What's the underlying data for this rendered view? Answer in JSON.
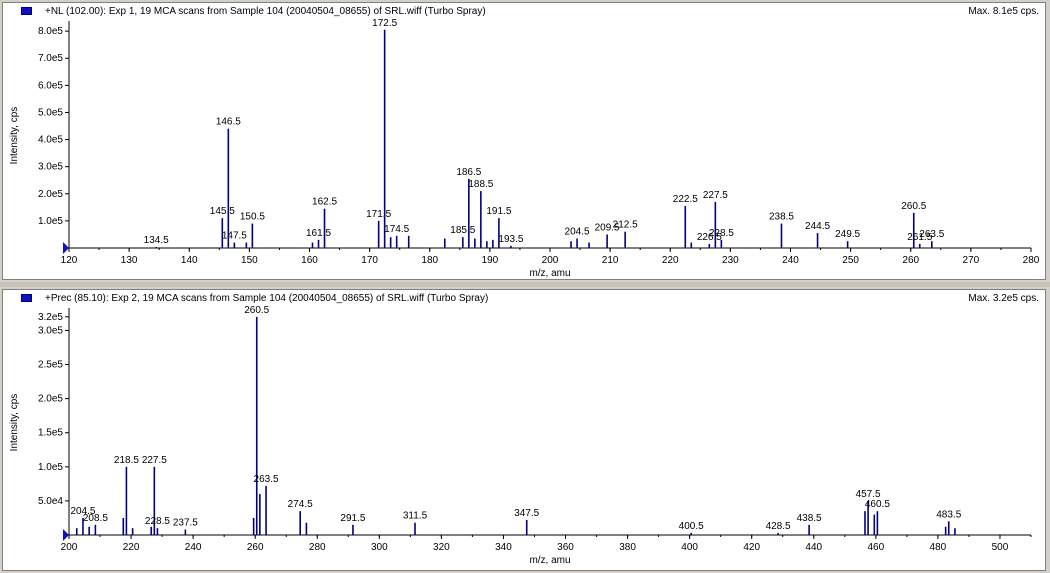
{
  "panels": [
    {
      "title": "+NL (102.00): Exp 1, 19 MCA scans from Sample 104 (20040504_08655) of SRL.wiff (Turbo Spray)",
      "max": "Max. 8.1e5 cps."
    },
    {
      "title": "+Prec (85.10): Exp 2, 19 MCA scans from Sample 104 (20040504_08655) of SRL.wiff (Turbo Spray)",
      "max": "Max. 3.2e5 cps."
    }
  ],
  "chart_data": [
    {
      "type": "bar",
      "xlabel": "m/z, amu",
      "ylabel": "Intensity, cps",
      "xlim": [
        120,
        280
      ],
      "ylim": [
        0,
        830000
      ],
      "x_ticks": [
        120,
        130,
        140,
        150,
        160,
        170,
        180,
        190,
        200,
        210,
        220,
        230,
        240,
        250,
        260,
        270,
        280
      ],
      "y_ticks": [
        100000,
        200000,
        300000,
        400000,
        500000,
        600000,
        700000,
        800000
      ],
      "y_tick_labels": [
        "1.0e5",
        "2.0e5",
        "3.0e5",
        "4.0e5",
        "5.0e5",
        "6.0e5",
        "7.0e5",
        "8.0e5"
      ],
      "color": "#000080",
      "peaks": [
        {
          "x": 134.5,
          "y": 2000,
          "label": "134.5"
        },
        {
          "x": 145.5,
          "y": 110000,
          "label": "145.5"
        },
        {
          "x": 146.5,
          "y": 440000,
          "label": "146.5"
        },
        {
          "x": 147.5,
          "y": 20000,
          "label": "147.5"
        },
        {
          "x": 149.5,
          "y": 20000
        },
        {
          "x": 150.5,
          "y": 90000,
          "label": "150.5"
        },
        {
          "x": 160.5,
          "y": 20000
        },
        {
          "x": 161.5,
          "y": 30000,
          "label": "161.5"
        },
        {
          "x": 162.5,
          "y": 145000,
          "label": "162.5"
        },
        {
          "x": 171.5,
          "y": 100000,
          "label": "171.5"
        },
        {
          "x": 172.5,
          "y": 805000,
          "label": "172.5"
        },
        {
          "x": 173.5,
          "y": 40000
        },
        {
          "x": 174.5,
          "y": 45000,
          "label": "174.5"
        },
        {
          "x": 176.5,
          "y": 45000
        },
        {
          "x": 182.5,
          "y": 35000
        },
        {
          "x": 185.5,
          "y": 40000,
          "label": "185.5"
        },
        {
          "x": 186.5,
          "y": 255000,
          "label": "186.5"
        },
        {
          "x": 187.5,
          "y": 35000
        },
        {
          "x": 188.5,
          "y": 210000,
          "label": "188.5"
        },
        {
          "x": 189.5,
          "y": 25000
        },
        {
          "x": 190.5,
          "y": 30000
        },
        {
          "x": 191.5,
          "y": 110000,
          "label": "191.5"
        },
        {
          "x": 193.5,
          "y": 8000,
          "label": "193.5"
        },
        {
          "x": 203.5,
          "y": 25000
        },
        {
          "x": 204.5,
          "y": 35000,
          "label": "204.5"
        },
        {
          "x": 206.5,
          "y": 20000
        },
        {
          "x": 209.5,
          "y": 50000,
          "label": "209.5"
        },
        {
          "x": 212.5,
          "y": 60000,
          "label": "212.5"
        },
        {
          "x": 222.5,
          "y": 155000,
          "label": "222.5"
        },
        {
          "x": 223.5,
          "y": 20000
        },
        {
          "x": 226.5,
          "y": 15000,
          "label": "226.5"
        },
        {
          "x": 227.5,
          "y": 170000,
          "label": "227.5"
        },
        {
          "x": 228.5,
          "y": 30000,
          "label": "228.5"
        },
        {
          "x": 238.5,
          "y": 90000,
          "label": "238.5"
        },
        {
          "x": 244.5,
          "y": 55000,
          "label": "244.5"
        },
        {
          "x": 249.5,
          "y": 25000,
          "label": "249.5"
        },
        {
          "x": 260.5,
          "y": 130000,
          "label": "260.5"
        },
        {
          "x": 261.5,
          "y": 15000,
          "label": "261.5"
        },
        {
          "x": 263.5,
          "y": 25000,
          "label": "263.5"
        }
      ]
    },
    {
      "type": "bar",
      "xlabel": "m/z, amu",
      "ylabel": "Intensity, cps",
      "xlim": [
        200,
        510
      ],
      "ylim": [
        0,
        330000
      ],
      "x_ticks": [
        200,
        220,
        240,
        260,
        280,
        300,
        320,
        340,
        360,
        380,
        400,
        420,
        440,
        460,
        480,
        500
      ],
      "y_ticks": [
        50000,
        100000,
        150000,
        200000,
        250000,
        300000,
        320000
      ],
      "y_tick_labels": [
        "5.0e4",
        "1.0e5",
        "1.5e5",
        "2.0e5",
        "2.5e5",
        "3.0e5",
        "3.2e5"
      ],
      "color": "#000080",
      "peaks": [
        {
          "x": 202.5,
          "y": 10000
        },
        {
          "x": 204.5,
          "y": 25000,
          "label": "204.5"
        },
        {
          "x": 206.5,
          "y": 12000
        },
        {
          "x": 208.5,
          "y": 15000,
          "label": "208.5"
        },
        {
          "x": 217.5,
          "y": 25000
        },
        {
          "x": 218.5,
          "y": 100000,
          "label": "218.5"
        },
        {
          "x": 220.5,
          "y": 10000
        },
        {
          "x": 226.5,
          "y": 12000
        },
        {
          "x": 227.5,
          "y": 100000,
          "label": "227.5"
        },
        {
          "x": 228.5,
          "y": 10000,
          "label": "228.5"
        },
        {
          "x": 237.5,
          "y": 8000,
          "label": "237.5"
        },
        {
          "x": 259.5,
          "y": 25000
        },
        {
          "x": 260.5,
          "y": 320000,
          "label": "260.5"
        },
        {
          "x": 261.5,
          "y": 60000
        },
        {
          "x": 263.5,
          "y": 72000,
          "label": "263.5"
        },
        {
          "x": 274.5,
          "y": 35000,
          "label": "274.5"
        },
        {
          "x": 276.5,
          "y": 18000
        },
        {
          "x": 291.5,
          "y": 15000,
          "label": "291.5"
        },
        {
          "x": 311.5,
          "y": 18000,
          "label": "311.5"
        },
        {
          "x": 347.5,
          "y": 22000,
          "label": "347.5"
        },
        {
          "x": 400.5,
          "y": 3000,
          "label": "400.5"
        },
        {
          "x": 428.5,
          "y": 3000,
          "label": "428.5"
        },
        {
          "x": 438.5,
          "y": 15000,
          "label": "438.5"
        },
        {
          "x": 456.5,
          "y": 35000
        },
        {
          "x": 457.5,
          "y": 50000,
          "label": "457.5"
        },
        {
          "x": 459.5,
          "y": 30000
        },
        {
          "x": 460.5,
          "y": 35000,
          "label": "460.5"
        },
        {
          "x": 482.5,
          "y": 12000
        },
        {
          "x": 483.5,
          "y": 20000,
          "label": "483.5"
        },
        {
          "x": 485.5,
          "y": 10000
        }
      ]
    }
  ]
}
